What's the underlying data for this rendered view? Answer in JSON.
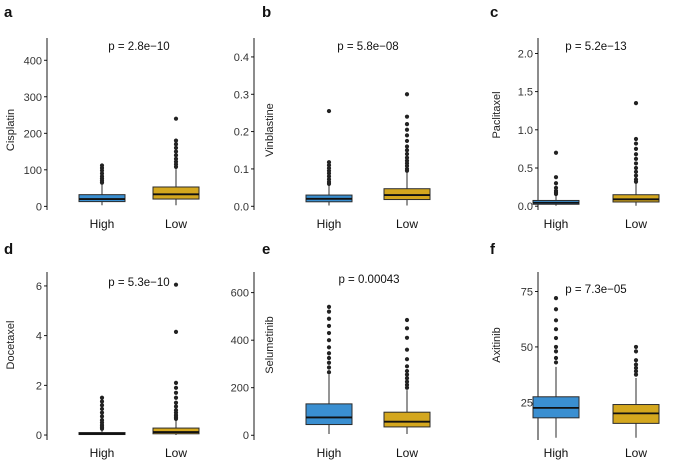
{
  "colors": {
    "High": "#3a8fd1",
    "Low": "#d4a71e",
    "outline": "#2b2b2b",
    "point": "#222222"
  },
  "chart_data": [
    {
      "panel": "a",
      "type": "box",
      "ylabel": "Cisplatin",
      "pvalue": "p = 2.8e−10",
      "ylim": [
        -10,
        450
      ],
      "yticks": [
        0,
        100,
        200,
        300,
        400
      ],
      "tick_labels": [
        "0",
        "100",
        "200",
        "300",
        "400"
      ],
      "categories": [
        "High",
        "Low"
      ],
      "series": [
        {
          "name": "High",
          "min": 3,
          "q1": 13,
          "median": 20,
          "q3": 32,
          "max": 60,
          "outliers": [
            65,
            70,
            76,
            82,
            90,
            98,
            105,
            112
          ]
        },
        {
          "name": "Low",
          "min": 3,
          "q1": 20,
          "median": 33,
          "q3": 53,
          "max": 102,
          "outliers": [
            108,
            115,
            122,
            130,
            140,
            150,
            160,
            170,
            180,
            240
          ]
        }
      ]
    },
    {
      "panel": "b",
      "type": "box",
      "ylabel": "Vinblastine",
      "pvalue": "p = 5.8e−08",
      "ylim": [
        -0.01,
        0.44
      ],
      "yticks": [
        0,
        0.1,
        0.2,
        0.3,
        0.4
      ],
      "tick_labels": [
        "0.0",
        "0.1",
        "0.2",
        "0.3",
        "0.4"
      ],
      "categories": [
        "High",
        "Low"
      ],
      "series": [
        {
          "name": "High",
          "min": 0.002,
          "q1": 0.012,
          "median": 0.02,
          "q3": 0.03,
          "max": 0.055,
          "outliers": [
            0.06,
            0.065,
            0.072,
            0.08,
            0.088,
            0.095,
            0.102,
            0.11,
            0.118,
            0.255
          ]
        },
        {
          "name": "Low",
          "min": 0.002,
          "q1": 0.018,
          "median": 0.03,
          "q3": 0.047,
          "max": 0.09,
          "outliers": [
            0.095,
            0.1,
            0.108,
            0.115,
            0.122,
            0.13,
            0.14,
            0.15,
            0.16,
            0.175,
            0.19,
            0.205,
            0.22,
            0.24,
            0.3
          ]
        }
      ]
    },
    {
      "panel": "c",
      "type": "box",
      "ylabel": "Paclitaxel",
      "pvalue": "p = 5.2e−13",
      "ylim": [
        -0.05,
        2.15
      ],
      "yticks": [
        0,
        0.5,
        1.0,
        1.5,
        2.0
      ],
      "tick_labels": [
        "0.0",
        "0.5",
        "1.0",
        "1.5",
        "2.0"
      ],
      "categories": [
        "High",
        "Low"
      ],
      "series": [
        {
          "name": "High",
          "min": 0.005,
          "q1": 0.025,
          "median": 0.045,
          "q3": 0.075,
          "max": 0.14,
          "outliers": [
            0.16,
            0.18,
            0.2,
            0.24,
            0.3,
            0.38,
            0.7
          ]
        },
        {
          "name": "Low",
          "min": 0.005,
          "q1": 0.055,
          "median": 0.09,
          "q3": 0.15,
          "max": 0.3,
          "outliers": [
            0.32,
            0.35,
            0.4,
            0.45,
            0.5,
            0.56,
            0.62,
            0.68,
            0.75,
            0.82,
            0.88,
            1.35
          ]
        }
      ]
    },
    {
      "panel": "d",
      "type": "box",
      "ylabel": "Docetaxel",
      "pvalue": "p = 5.3e−10",
      "ylim": [
        -0.2,
        6.4
      ],
      "yticks": [
        0,
        2,
        4,
        6
      ],
      "tick_labels": [
        "0",
        "2",
        "4",
        "6"
      ],
      "categories": [
        "High",
        "Low"
      ],
      "series": [
        {
          "name": "High",
          "min": 0.0,
          "q1": 0.02,
          "median": 0.05,
          "q3": 0.1,
          "max": 0.2,
          "outliers": [
            0.25,
            0.32,
            0.4,
            0.5,
            0.6,
            0.75,
            0.9,
            1.05,
            1.2,
            1.35,
            1.5
          ]
        },
        {
          "name": "Low",
          "min": 0.0,
          "q1": 0.05,
          "median": 0.12,
          "q3": 0.28,
          "max": 0.6,
          "outliers": [
            0.65,
            0.72,
            0.8,
            0.9,
            1.0,
            1.15,
            1.3,
            1.5,
            1.7,
            1.9,
            2.1,
            4.15,
            6.05
          ]
        }
      ]
    },
    {
      "panel": "e",
      "type": "box",
      "ylabel": "Selumetinib",
      "pvalue": "p = 0.00043",
      "ylim": [
        -20,
        670
      ],
      "yticks": [
        0,
        200,
        400,
        600
      ],
      "tick_labels": [
        "0",
        "200",
        "400",
        "600"
      ],
      "categories": [
        "High",
        "Low"
      ],
      "series": [
        {
          "name": "High",
          "min": 5,
          "q1": 45,
          "median": 75,
          "q3": 132,
          "max": 255,
          "outliers": [
            265,
            285,
            305,
            325,
            345,
            370,
            400,
            430,
            460,
            490,
            520,
            540
          ]
        },
        {
          "name": "Low",
          "min": 5,
          "q1": 35,
          "median": 57,
          "q3": 97,
          "max": 190,
          "outliers": [
            200,
            212,
            225,
            240,
            255,
            270,
            290,
            320,
            360,
            410,
            450,
            485
          ]
        }
      ]
    },
    {
      "panel": "f",
      "type": "box",
      "ylabel": "Axitinib",
      "pvalue": "p = 7.3e−05",
      "ylim": [
        8,
        82
      ],
      "yticks": [
        25,
        50,
        75
      ],
      "tick_labels": [
        "25",
        "50",
        "75"
      ],
      "categories": [
        "High",
        "Low"
      ],
      "series": [
        {
          "name": "High",
          "min": 9,
          "q1": 18,
          "median": 22.5,
          "q3": 27.5,
          "max": 41,
          "outliers": [
            43,
            45,
            48,
            50,
            54,
            58,
            62,
            67,
            72
          ]
        },
        {
          "name": "Low",
          "min": 9,
          "q1": 15.5,
          "median": 20,
          "q3": 24,
          "max": 36,
          "outliers": [
            37.5,
            39,
            40.5,
            42,
            44,
            48,
            50
          ]
        }
      ]
    }
  ]
}
